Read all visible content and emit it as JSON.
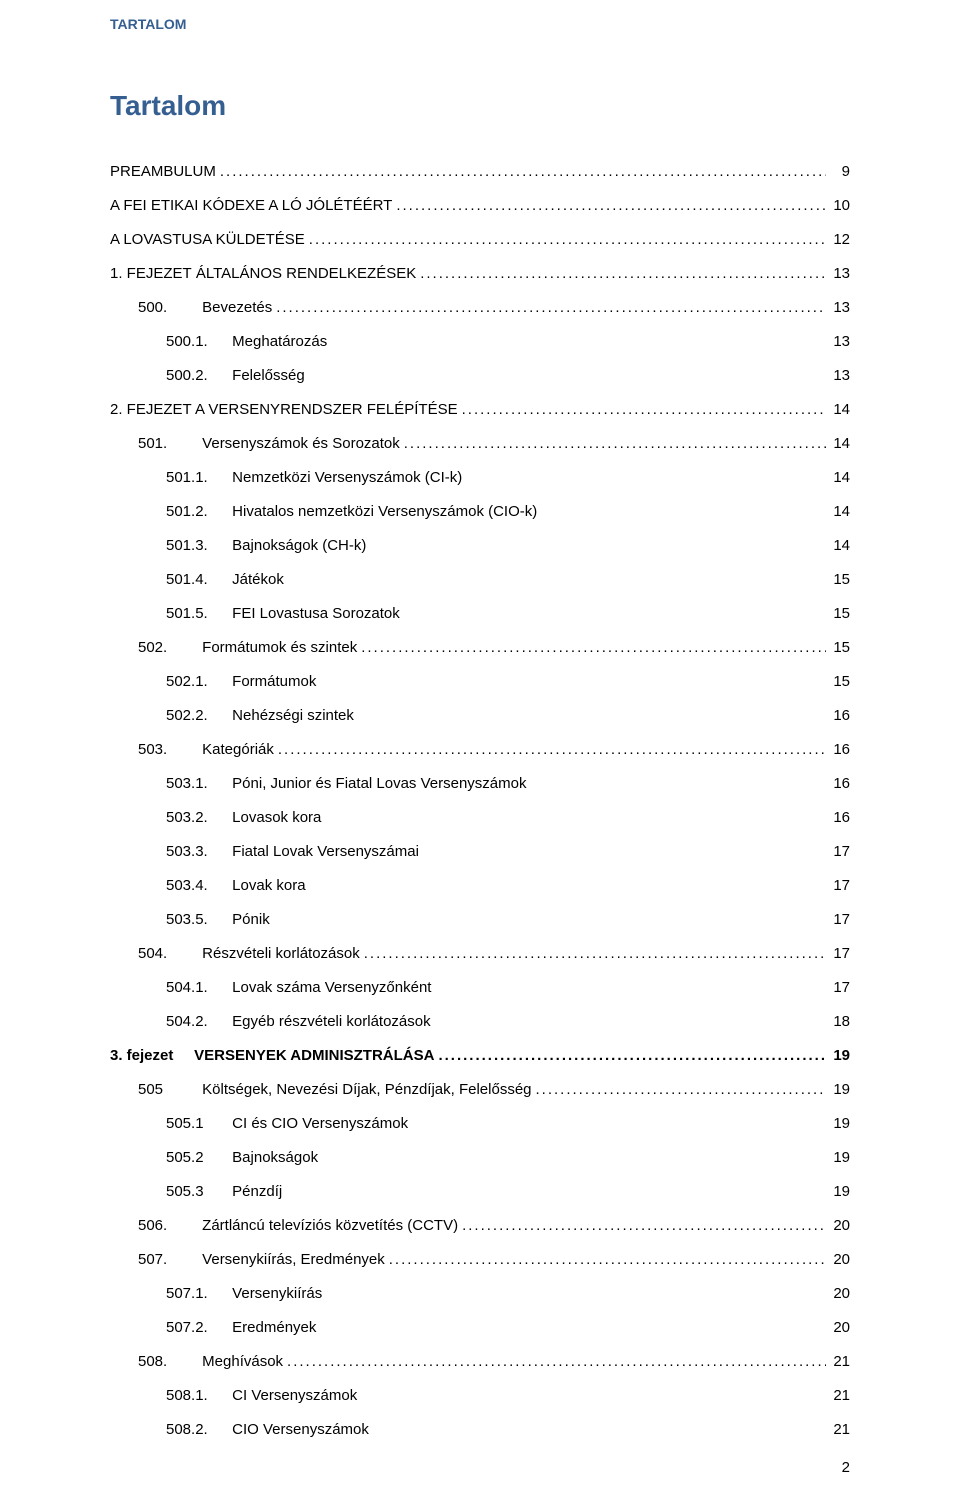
{
  "header": "TARTALOM",
  "title": "Tartalom",
  "footer_page": "2",
  "colors": {
    "heading": "#365f91",
    "text": "#000000",
    "background": "#ffffff"
  },
  "typography": {
    "body_family": "Verdana",
    "body_size_pt": 11,
    "title_size_pt": 21,
    "header_size_pt": 10
  },
  "entries": [
    {
      "label": "PREAMBULUM",
      "page": "9",
      "indent": 0,
      "leader": true
    },
    {
      "label": "A FEI ETIKAI KÓDEXE A LÓ JÓLÉTÉÉRT",
      "page": "10",
      "indent": 0,
      "leader": true
    },
    {
      "label": "A LOVASTUSA KÜLDETÉSE",
      "page": "12",
      "indent": 0,
      "leader": true
    },
    {
      "num": "1. FEJEZET",
      "label": "ÁLTALÁNOS RENDELKEZÉSEK",
      "page": "13",
      "indent": 0,
      "leader": true,
      "numClass": "tab-num-wide"
    },
    {
      "num": "500.",
      "label": "Bevezetés",
      "page": "13",
      "indent": 1,
      "leader": true,
      "numClass": "tab-sec"
    },
    {
      "num": "500.1.",
      "label": "Meghatározás",
      "page": "13",
      "indent": 2,
      "leader": false,
      "numClass": "tab-num"
    },
    {
      "num": "500.2.",
      "label": "Felelősség",
      "page": "13",
      "indent": 2,
      "leader": false,
      "numClass": "tab-num"
    },
    {
      "num": "2. FEJEZET",
      "label": "A VERSENYRENDSZER FELÉPÍTÉSE",
      "page": "14",
      "indent": 0,
      "leader": true,
      "numClass": "tab-num-wide"
    },
    {
      "num": "501.",
      "label": "Versenyszámok és Sorozatok",
      "page": "14",
      "indent": 1,
      "leader": true,
      "numClass": "tab-sec"
    },
    {
      "num": "501.1.",
      "label": "Nemzetközi Versenyszámok (CI-k)",
      "page": "14",
      "indent": 2,
      "leader": false,
      "numClass": "tab-num"
    },
    {
      "num": "501.2.",
      "label": "Hivatalos nemzetközi Versenyszámok (CIO-k)",
      "page": "14",
      "indent": 2,
      "leader": false,
      "numClass": "tab-num"
    },
    {
      "num": "501.3.",
      "label": "Bajnokságok (CH-k)",
      "page": "14",
      "indent": 2,
      "leader": false,
      "numClass": "tab-num"
    },
    {
      "num": "501.4.",
      "label": "Játékok",
      "page": "15",
      "indent": 2,
      "leader": false,
      "numClass": "tab-num"
    },
    {
      "num": "501.5.",
      "label": "FEI Lovastusa Sorozatok",
      "page": "15",
      "indent": 2,
      "leader": false,
      "numClass": "tab-num"
    },
    {
      "num": "502.",
      "label": "Formátumok és szintek",
      "page": "15",
      "indent": 1,
      "leader": true,
      "numClass": "tab-sec"
    },
    {
      "num": "502.1.",
      "label": "Formátumok",
      "page": "15",
      "indent": 2,
      "leader": false,
      "numClass": "tab-num"
    },
    {
      "num": "502.2.",
      "label": "Nehézségi szintek",
      "page": "16",
      "indent": 2,
      "leader": false,
      "numClass": "tab-num"
    },
    {
      "num": "503.",
      "label": "Kategóriák",
      "page": "16",
      "indent": 1,
      "leader": true,
      "numClass": "tab-sec"
    },
    {
      "num": "503.1.",
      "label": "Póni, Junior és Fiatal Lovas Versenyszámok",
      "page": "16",
      "indent": 2,
      "leader": false,
      "numClass": "tab-num"
    },
    {
      "num": "503.2.",
      "label": "Lovasok kora",
      "page": "16",
      "indent": 2,
      "leader": false,
      "numClass": "tab-num"
    },
    {
      "num": "503.3.",
      "label": "Fiatal Lovak Versenyszámai",
      "page": "17",
      "indent": 2,
      "leader": false,
      "numClass": "tab-num"
    },
    {
      "num": "503.4.",
      "label": "Lovak kora",
      "page": "17",
      "indent": 2,
      "leader": false,
      "numClass": "tab-num"
    },
    {
      "num": "503.5.",
      "label": "Pónik",
      "page": "17",
      "indent": 2,
      "leader": false,
      "numClass": "tab-num"
    },
    {
      "num": "504.",
      "label": "Részvételi korlátozások",
      "page": "17",
      "indent": 1,
      "leader": true,
      "numClass": "tab-sec"
    },
    {
      "num": "504.1.",
      "label": "Lovak száma Versenyzőnként",
      "page": "17",
      "indent": 2,
      "leader": false,
      "numClass": "tab-num"
    },
    {
      "num": "504.2.",
      "label": "Egyéb részvételi korlátozások",
      "page": "18",
      "indent": 2,
      "leader": false,
      "numClass": "tab-num"
    },
    {
      "num": "3. fejezet",
      "label": "VERSENYEK ADMINISZTRÁLÁSA",
      "page": "19",
      "indent": 0,
      "leader": true,
      "bold": true,
      "numClass": "tab-num-wide"
    },
    {
      "num": "505",
      "label": "Költségek, Nevezési Díjak, Pénzdíjak, Felelősség",
      "page": "19",
      "indent": 1,
      "leader": true,
      "numClass": "tab-sec"
    },
    {
      "num": "505.1",
      "label": "CI és CIO Versenyszámok",
      "page": "19",
      "indent": 2,
      "leader": false,
      "numClass": "tab-num"
    },
    {
      "num": "505.2",
      "label": "Bajnokságok",
      "page": "19",
      "indent": 2,
      "leader": false,
      "numClass": "tab-num"
    },
    {
      "num": "505.3",
      "label": "Pénzdíj",
      "page": "19",
      "indent": 2,
      "leader": false,
      "numClass": "tab-num"
    },
    {
      "num": "506.",
      "label": "Zártláncú televíziós közvetítés (CCTV)",
      "page": "20",
      "indent": 1,
      "leader": true,
      "numClass": "tab-sec"
    },
    {
      "num": "507.",
      "label": "Versenykiírás, Eredmények",
      "page": "20",
      "indent": 1,
      "leader": true,
      "numClass": "tab-sec"
    },
    {
      "num": "507.1.",
      "label": "Versenykiírás",
      "page": "20",
      "indent": 2,
      "leader": false,
      "numClass": "tab-num"
    },
    {
      "num": "507.2.",
      "label": "Eredmények",
      "page": "20",
      "indent": 2,
      "leader": false,
      "numClass": "tab-num"
    },
    {
      "num": "508.",
      "label": "Meghívások",
      "page": "21",
      "indent": 1,
      "leader": true,
      "numClass": "tab-sec"
    },
    {
      "num": "508.1.",
      "label": "CI Versenyszámok",
      "page": "21",
      "indent": 2,
      "leader": false,
      "numClass": "tab-num"
    },
    {
      "num": "508.2.",
      "label": "CIO Versenyszámok",
      "page": "21",
      "indent": 2,
      "leader": false,
      "numClass": "tab-num"
    }
  ]
}
